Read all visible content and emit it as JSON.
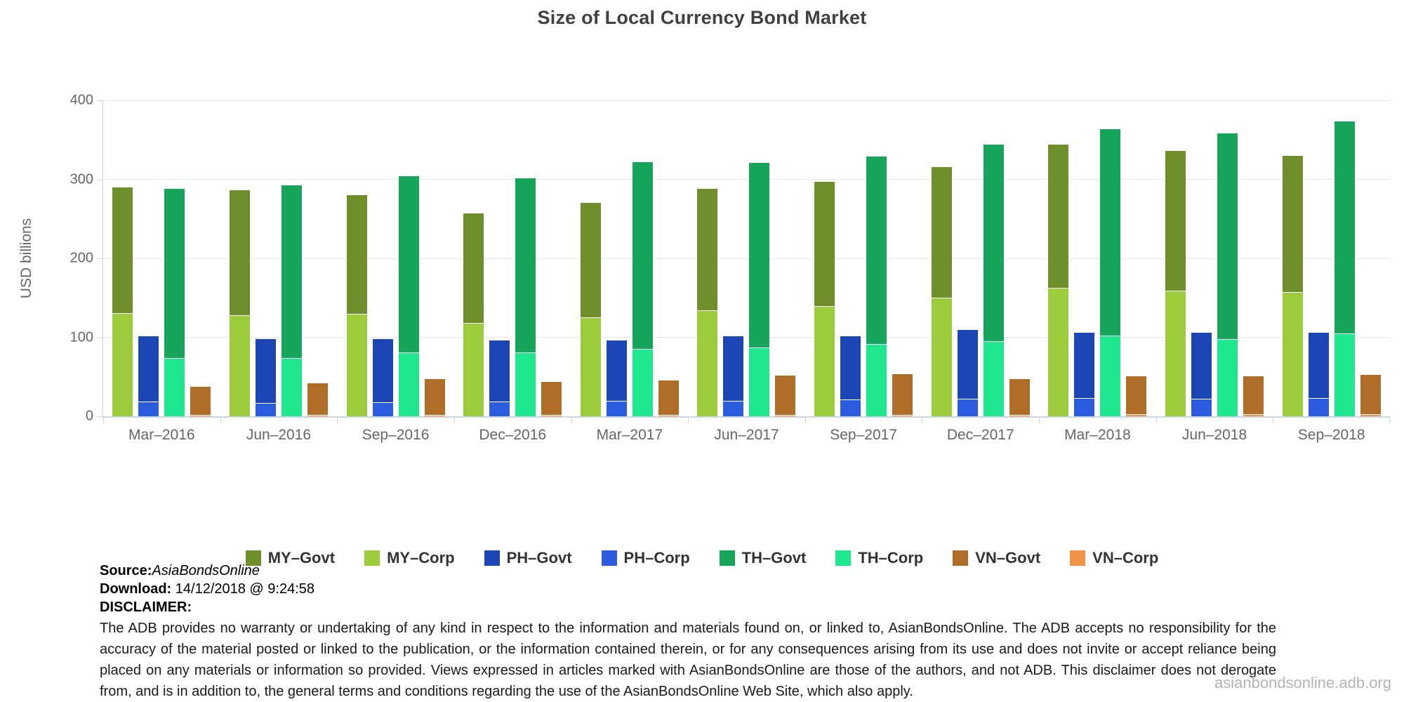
{
  "title": "Size of Local Currency Bond Market",
  "chart_data": {
    "type": "bar",
    "stacked": true,
    "title": "Size of Local Currency Bond Market",
    "xlabel": "",
    "ylabel": "USD billions",
    "ylim": [
      0,
      400
    ],
    "yticks": [
      0,
      100,
      200,
      300,
      400
    ],
    "grid": true,
    "legend_position": "bottom",
    "categories": [
      "Mar–2016",
      "Jun–2016",
      "Sep–2016",
      "Dec–2016",
      "Mar–2017",
      "Jun–2017",
      "Sep–2017",
      "Dec–2017",
      "Mar–2018",
      "Jun–2018",
      "Sep–2018"
    ],
    "series": [
      {
        "name": "MY–Govt",
        "color": "#6f8e2c",
        "values": [
          160,
          159,
          151,
          140,
          146,
          155,
          158,
          166,
          182,
          178,
          174
        ]
      },
      {
        "name": "MY–Corp",
        "color": "#9ccc3c",
        "values": [
          131,
          128,
          130,
          118,
          125,
          134,
          140,
          150,
          163,
          159,
          157
        ]
      },
      {
        "name": "PH–Govt",
        "color": "#1c45b5",
        "values": [
          83,
          82,
          81,
          78,
          77,
          82,
          81,
          88,
          84,
          85,
          84
        ]
      },
      {
        "name": "PH–Corp",
        "color": "#2b5ce0",
        "values": [
          19,
          17,
          18,
          19,
          20,
          20,
          21,
          22,
          23,
          22,
          23
        ]
      },
      {
        "name": "TH–Govt",
        "color": "#17a45b",
        "values": [
          215,
          219,
          224,
          221,
          238,
          235,
          238,
          250,
          262,
          261,
          269
        ]
      },
      {
        "name": "TH–Corp",
        "color": "#1ee78d",
        "values": [
          74,
          74,
          81,
          81,
          85,
          87,
          92,
          95,
          102,
          98,
          105
        ]
      },
      {
        "name": "VN–Govt",
        "color": "#b06d28",
        "values": [
          36,
          41,
          46,
          42,
          44,
          50,
          52,
          46,
          49,
          49,
          50
        ]
      },
      {
        "name": "VN–Corp",
        "color": "#f19445",
        "values": [
          2,
          2,
          2,
          2,
          2,
          2,
          2,
          2,
          3,
          3,
          3
        ]
      }
    ],
    "stacks": [
      {
        "country": "MY",
        "bottom": "MY–Corp",
        "top": "MY–Govt"
      },
      {
        "country": "PH",
        "bottom": "PH–Corp",
        "top": "PH–Govt"
      },
      {
        "country": "TH",
        "bottom": "TH–Corp",
        "top": "TH–Govt"
      },
      {
        "country": "VN",
        "bottom": "VN–Corp",
        "top": "VN–Govt"
      }
    ]
  },
  "footer": {
    "source_label": "Source:",
    "source_value": "AsiaBondsOnline",
    "download_label": "Download:",
    "download_value": " 14/12/2018 @ 9:24:58",
    "disclaimer_label": "DISCLAIMER:",
    "disclaimer_text": "The ADB provides no warranty or undertaking of any kind in respect to the information and materials found on, or linked to, AsianBondsOnline. The ADB accepts no responsibility for the accuracy of the material posted or linked to the publication, or the information contained therein, or for any consequences arising from its use and does not invite or accept reliance being placed on any materials or information so provided. Views expressed in articles marked with AsianBondsOnline are those of the authors, and not ADB. This disclaimer does not derogate from, and is in addition to, the general terms and conditions regarding the use of the AsianBondsOnline Web Site, which also apply.",
    "watermark": "asianbondsonline.adb.org"
  }
}
